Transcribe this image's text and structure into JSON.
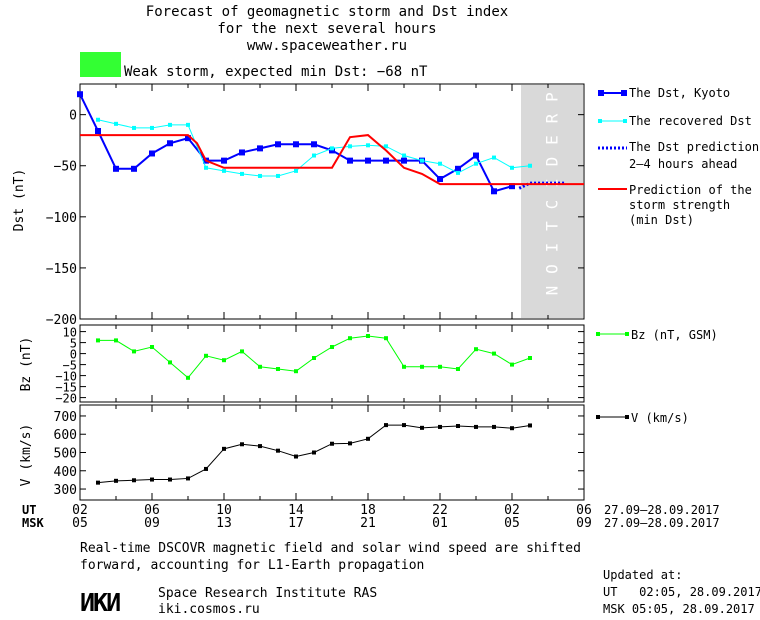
{
  "header": {
    "title_lines": [
      "Forecast of geomagnetic storm and Dst index",
      "for the next several hours",
      "www.spaceweather.ru"
    ],
    "storm_label": "Weak storm, expected min Dst: −68 nT",
    "storm_color": "#33ff33"
  },
  "legend": {
    "dst_kyoto": "The Dst, Kyoto",
    "recovered": "The recovered Dst",
    "prediction_1": "The Dst prediction",
    "prediction_2": "2–4 hours ahead",
    "strength_1": "Prediction of the",
    "strength_2": "storm strength",
    "strength_3": "(min Dst)",
    "bz": "Bz (nT, GSM)",
    "v": "V (km/s)"
  },
  "colors": {
    "dst_kyoto": "#0000ff",
    "recovered": "#00ffff",
    "prediction": "#0000ff",
    "strength": "#ff0000",
    "bz": "#00ff00",
    "v": "#000000",
    "prediction_band": "#d9d9d9"
  },
  "prediction_band_label": "PREDICTION",
  "time_axis": {
    "ut_label": "UT",
    "msk_label": "MSK",
    "ut_ticks": [
      "02",
      "06",
      "10",
      "14",
      "18",
      "22",
      "02",
      "06"
    ],
    "msk_ticks": [
      "05",
      "09",
      "13",
      "17",
      "21",
      "01",
      "05",
      "09"
    ],
    "date_range_ut": "27.09–28.09.2017",
    "date_range_msk": "27.09–28.09.2017"
  },
  "footer": {
    "note_1": "Real-time DSCOVR magnetic field and solar wind speed are shifted",
    "note_2": "forward, accounting for L1-Earth propagation",
    "logo": "ИКИ",
    "institute": "Space Research Institute RAS",
    "site": "iki.cosmos.ru",
    "updated_label": "Updated at:",
    "updated_ut": "UT   02:05, 28.09.2017",
    "updated_msk": "MSK 05:05, 28.09.2017"
  },
  "chart_data": [
    {
      "type": "line",
      "ylabel": "Dst (nT)",
      "xlim": [
        0,
        28
      ],
      "ylim": [
        -200,
        30
      ],
      "yticks": [
        0,
        -50,
        -100,
        -150,
        -200
      ],
      "prediction_band_x": [
        24.5,
        28
      ],
      "series": [
        {
          "name": "The Dst, Kyoto",
          "x": [
            0,
            1,
            2,
            3,
            4,
            5,
            6,
            7,
            8,
            9,
            10,
            11,
            12,
            13,
            14,
            15,
            16,
            17,
            18,
            19,
            20,
            21,
            22,
            23,
            24
          ],
          "values": [
            20,
            -16,
            -53,
            -53,
            -38,
            -28,
            -23,
            -45,
            -45,
            -37,
            -33,
            -29,
            -29,
            -29,
            -35,
            -45,
            -45,
            -45,
            -45,
            -45,
            -63,
            -53,
            -40,
            -75,
            -70
          ]
        },
        {
          "name": "The recovered Dst",
          "x": [
            1,
            2,
            3,
            4,
            5,
            6,
            7,
            8,
            9,
            10,
            11,
            12,
            13,
            14,
            15,
            16,
            17,
            18,
            19,
            20,
            21,
            22,
            23,
            24,
            25
          ],
          "values": [
            -5,
            -9,
            -13,
            -13,
            -10,
            -10,
            -52,
            -55,
            -58,
            -60,
            -60,
            -55,
            -40,
            -33,
            -31,
            -30,
            -31,
            -40,
            -45,
            -48,
            -57,
            -48,
            -42,
            -52,
            -50
          ]
        },
        {
          "name": "The Dst prediction 2–4 hours ahead",
          "x": [
            24.4,
            25,
            26,
            27
          ],
          "values": [
            -72,
            -67,
            -67,
            -67
          ]
        },
        {
          "name": "Prediction of the storm strength (min Dst)",
          "x": [
            0,
            6,
            6.5,
            7,
            8,
            10,
            14,
            15,
            16,
            17,
            18,
            19,
            20,
            21,
            22,
            28
          ],
          "values": [
            -20,
            -20,
            -28,
            -45,
            -52,
            -52,
            -52,
            -22,
            -20,
            -35,
            -52,
            -58,
            -68,
            -68,
            -68,
            -68
          ]
        }
      ]
    },
    {
      "type": "line",
      "ylabel": "Bz (nT)",
      "xlim": [
        0,
        28
      ],
      "ylim": [
        -22,
        13
      ],
      "yticks": [
        10,
        5,
        0,
        -5,
        -10,
        -15,
        -20
      ],
      "series": [
        {
          "name": "Bz (nT, GSM)",
          "x": [
            1,
            2,
            3,
            4,
            5,
            6,
            7,
            8,
            9,
            10,
            11,
            12,
            13,
            14,
            15,
            16,
            17,
            18,
            19,
            20,
            21,
            22,
            23,
            24,
            25
          ],
          "values": [
            6,
            6,
            1,
            3,
            -4,
            -11,
            -1,
            -3,
            1,
            -6,
            -7,
            -8,
            -2,
            3,
            7,
            8,
            7,
            -6,
            -6,
            -6,
            -7,
            2,
            0,
            -5,
            -2
          ]
        }
      ]
    },
    {
      "type": "line",
      "ylabel": "V (km/s)",
      "xlim": [
        0,
        28
      ],
      "ylim": [
        240,
        760
      ],
      "yticks": [
        300,
        400,
        500,
        600,
        700
      ],
      "series": [
        {
          "name": "V (km/s)",
          "x": [
            1,
            2,
            3,
            4,
            5,
            6,
            7,
            8,
            9,
            10,
            11,
            12,
            13,
            14,
            15,
            16,
            17,
            18,
            19,
            20,
            21,
            22,
            23,
            24,
            25
          ],
          "values": [
            335,
            345,
            348,
            352,
            352,
            358,
            410,
            520,
            545,
            535,
            510,
            478,
            500,
            548,
            550,
            575,
            650,
            650,
            635,
            640,
            645,
            640,
            640,
            633,
            648
          ]
        }
      ]
    }
  ]
}
